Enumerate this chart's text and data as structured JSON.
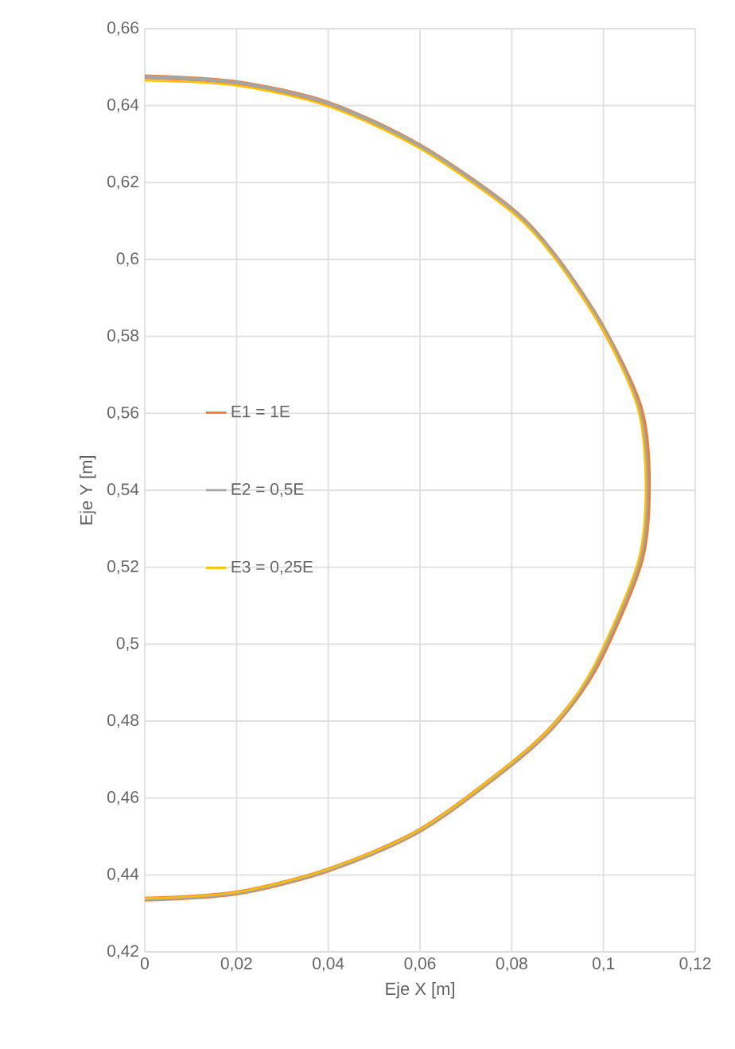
{
  "chart_data": {
    "type": "line",
    "xlabel": "Eje X [m]",
    "ylabel": "Eje Y [m]",
    "xlim": [
      0,
      0.12
    ],
    "ylim": [
      0.42,
      0.66
    ],
    "xticks": [
      0,
      {
        "value": 0.02,
        "label": "0,02"
      },
      {
        "value": 0.04,
        "label": "0,04"
      },
      {
        "value": 0.06,
        "label": "0,06"
      },
      {
        "value": 0.08,
        "label": "0,08"
      },
      {
        "value": 0.1,
        "label": "0,1"
      },
      {
        "value": 0.12,
        "label": "0,12"
      }
    ],
    "yticks": [
      {
        "value": 0.42,
        "label": "0,42"
      },
      {
        "value": 0.44,
        "label": "0,44"
      },
      {
        "value": 0.46,
        "label": "0,46"
      },
      {
        "value": 0.48,
        "label": "0,48"
      },
      {
        "value": 0.5,
        "label": "0,5"
      },
      {
        "value": 0.52,
        "label": "0,52"
      },
      {
        "value": 0.54,
        "label": "0,54"
      },
      {
        "value": 0.56,
        "label": "0,56"
      },
      {
        "value": 0.58,
        "label": "0,58"
      },
      {
        "value": 0.6,
        "label": "0,6"
      },
      {
        "value": 0.62,
        "label": "0,62"
      },
      {
        "value": 0.64,
        "label": "0,64"
      },
      {
        "value": 0.66,
        "label": "0,66"
      }
    ],
    "grid": true,
    "legend": "left",
    "marker": "none",
    "line_style": "solid",
    "series": [
      {
        "name": "E1 = 1E",
        "color": "#ed7d31",
        "x": [
          0,
          0.02,
          0.04,
          0.06,
          0.08,
          0.09,
          0.1,
          0.1081,
          0.1098,
          0.1081,
          0.0988,
          0.09,
          0.08,
          0.06,
          0.04,
          0.02,
          0
        ],
        "values": [
          0.6475,
          0.646,
          0.6406,
          0.6295,
          0.613,
          0.6,
          0.582,
          0.5612,
          0.5413,
          0.5213,
          0.495,
          0.48,
          0.4689,
          0.4516,
          0.4413,
          0.4353,
          0.4337
        ]
      },
      {
        "name": "E2 = 0,5E",
        "color": "#a5a5a5",
        "x": [
          0,
          0.02,
          0.04,
          0.06,
          0.08,
          0.09,
          0.1,
          0.1078,
          0.1095,
          0.1078,
          0.0985,
          0.09,
          0.08,
          0.06,
          0.04,
          0.02,
          0
        ],
        "values": [
          0.6475,
          0.646,
          0.6406,
          0.6295,
          0.613,
          0.6,
          0.582,
          0.5612,
          0.5413,
          0.5213,
          0.495,
          0.48,
          0.4689,
          0.4516,
          0.4413,
          0.4353,
          0.4337
        ]
      },
      {
        "name": "E3 = 0,25E",
        "color": "#ffc000",
        "x": [
          0,
          0.02,
          0.04,
          0.06,
          0.08,
          0.09,
          0.1,
          0.1075,
          0.1092,
          0.1075,
          0.0982,
          0.09,
          0.08,
          0.06,
          0.04,
          0.02,
          0
        ],
        "values": [
          0.6465,
          0.6452,
          0.6398,
          0.6288,
          0.6123,
          0.5993,
          0.5813,
          0.5612,
          0.5413,
          0.5213,
          0.495,
          0.4803,
          0.4692,
          0.4518,
          0.4415,
          0.4355,
          0.4339
        ]
      }
    ]
  }
}
